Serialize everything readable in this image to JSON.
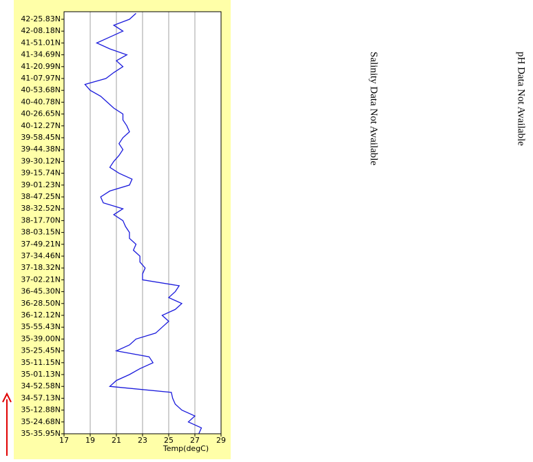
{
  "chart_data": {
    "type": "line",
    "orientation": "horizontal",
    "x_label": "Temp(degC)",
    "color": "#1a1adc",
    "xlim": [
      17,
      29
    ],
    "xticks": [
      17,
      19,
      21,
      23,
      25,
      27,
      29
    ],
    "grid": true,
    "categories": [
      "35-35.95N",
      null,
      "35-24.68N",
      null,
      "35-12.88N",
      null,
      "34-57.13N",
      null,
      "34-52.58N",
      null,
      "35-01.13N",
      null,
      "35-11.15N",
      null,
      "35-25.45N",
      null,
      "35-39.00N",
      null,
      "35-55.43N",
      null,
      "36-12.12N",
      null,
      "36-28.50N",
      null,
      "36-45.30N",
      null,
      "37-02.21N",
      null,
      "37-18.32N",
      null,
      "37-34.46N",
      null,
      "37-49.21N",
      null,
      "38-03.15N",
      null,
      "38-17.70N",
      null,
      "38-32.52N",
      null,
      "38-47.25N",
      null,
      "39-01.23N",
      null,
      "39-15.74N",
      null,
      "39-30.12N",
      null,
      "39-44.38N",
      null,
      "39-58.45N",
      null,
      "40-12.27N",
      null,
      "40-26.65N",
      null,
      "40-40.78N",
      null,
      "40-53.68N",
      null,
      "41-07.97N",
      null,
      "41-20.99N",
      null,
      "41-34.69N",
      null,
      "41-51.01N",
      null,
      "42-08.18N",
      null,
      "42-25.83N",
      null
    ],
    "values": [
      27.3,
      27.5,
      26.5,
      27,
      26,
      25.5,
      25.3,
      25.2,
      20.5,
      21,
      22,
      22.8,
      23.8,
      23.5,
      21,
      22,
      22.5,
      24,
      24.5,
      25,
      24.5,
      25.5,
      26,
      25,
      25.5,
      25.8,
      23,
      23,
      23.2,
      22.8,
      22.8,
      22.3,
      22.5,
      22,
      22,
      21.7,
      21.5,
      20.8,
      21.5,
      20,
      19.8,
      20.5,
      22,
      22.2,
      21.2,
      20.5,
      20.8,
      21.2,
      21.5,
      21.2,
      21.5,
      22,
      21.8,
      21.5,
      21.5,
      20.8,
      20.3,
      19.8,
      19,
      18.6,
      20.2,
      20.8,
      21.5,
      21,
      21.8,
      20.5,
      19.5,
      20.5,
      21.5,
      20.8,
      22,
      22.5
    ]
  },
  "panels": [
    "Salinity Data Not Available",
    "pH Data Not Available"
  ]
}
